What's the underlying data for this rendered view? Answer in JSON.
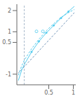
{
  "chart_data": {
    "type": "line",
    "xlim": [
      -0.15,
      1.05
    ],
    "ylim": [
      -1.5,
      2.3
    ],
    "xticks": [
      0.5,
      1
    ],
    "yticks": [
      -1,
      0.5,
      1,
      2
    ],
    "series": [
      {
        "type": "line",
        "color": "#aabbcc",
        "line_style": "dashed",
        "x": [
          0.0,
          0.0
        ],
        "values": [
          -1.5,
          2.3
        ]
      },
      {
        "type": "line",
        "color": "#7799bb",
        "line_style": "dashed",
        "x": [
          -0.12,
          1.02
        ],
        "values": [
          -0.95,
          1.9
        ]
      },
      {
        "type": "line",
        "color": "#55ccee",
        "line_style": "solid",
        "x": [
          -0.12,
          -0.05,
          0.0,
          0.15,
          0.3,
          0.45,
          0.6,
          0.75,
          0.9,
          1.02
        ],
        "values": [
          -1.3,
          -0.8,
          -0.55,
          0.05,
          0.55,
          0.95,
          1.3,
          1.65,
          1.95,
          2.2
        ]
      },
      {
        "type": "line",
        "color": "#55ccee",
        "line_style": "dashed",
        "x": [
          -0.12,
          -0.05,
          0.0,
          0.15,
          0.3,
          0.45,
          0.6,
          0.75,
          0.9,
          1.02
        ],
        "values": [
          -1.05,
          -0.6,
          -0.35,
          0.2,
          0.65,
          1.05,
          1.38,
          1.68,
          1.9,
          2.05
        ]
      },
      {
        "type": "scatter",
        "color": "#55ccee",
        "marker": "circle",
        "x": [
          0.15,
          0.3,
          0.45,
          0.6,
          0.75,
          0.9
        ],
        "values": [
          0.05,
          0.55,
          0.95,
          1.3,
          1.65,
          1.95
        ]
      },
      {
        "type": "scatter",
        "color": "#55ccee",
        "marker": "open_circle",
        "x": [
          0.25,
          0.38
        ],
        "values": [
          1.02,
          1.02
        ]
      }
    ]
  }
}
